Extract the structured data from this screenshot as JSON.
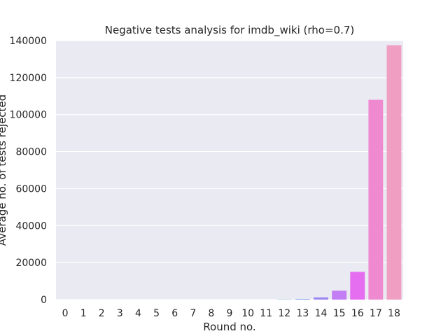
{
  "chart_data": {
    "type": "bar",
    "title": "Negative tests analysis for imdb_wiki (rho=0.7)",
    "xlabel": "Round no.",
    "ylabel": "Average no. of tests rejected",
    "categories": [
      "0",
      "1",
      "2",
      "3",
      "4",
      "5",
      "6",
      "7",
      "8",
      "9",
      "10",
      "11",
      "12",
      "13",
      "14",
      "15",
      "16",
      "17",
      "18"
    ],
    "values": [
      0,
      0,
      0,
      0,
      0,
      0,
      0,
      0,
      0,
      0,
      0,
      0,
      100,
      300,
      1200,
      4800,
      15000,
      108000,
      137500
    ],
    "ylim": [
      0,
      140000
    ],
    "yticks": [
      0,
      20000,
      40000,
      60000,
      80000,
      100000,
      120000,
      140000
    ],
    "grid": true,
    "colors": [
      "#f37651",
      "#e88a2a",
      "#d29a2e",
      "#bca132",
      "#a6a833",
      "#8cb031",
      "#5fb83a",
      "#3cb86f",
      "#37b38f",
      "#36ae9f",
      "#38aab0",
      "#3aa5c2",
      "#3d9fd9",
      "#6a93ef",
      "#9d87f3",
      "#c47ef3",
      "#e56ef0",
      "#f08ad0",
      "#f09ec2"
    ],
    "background": "#eaeaf2"
  }
}
